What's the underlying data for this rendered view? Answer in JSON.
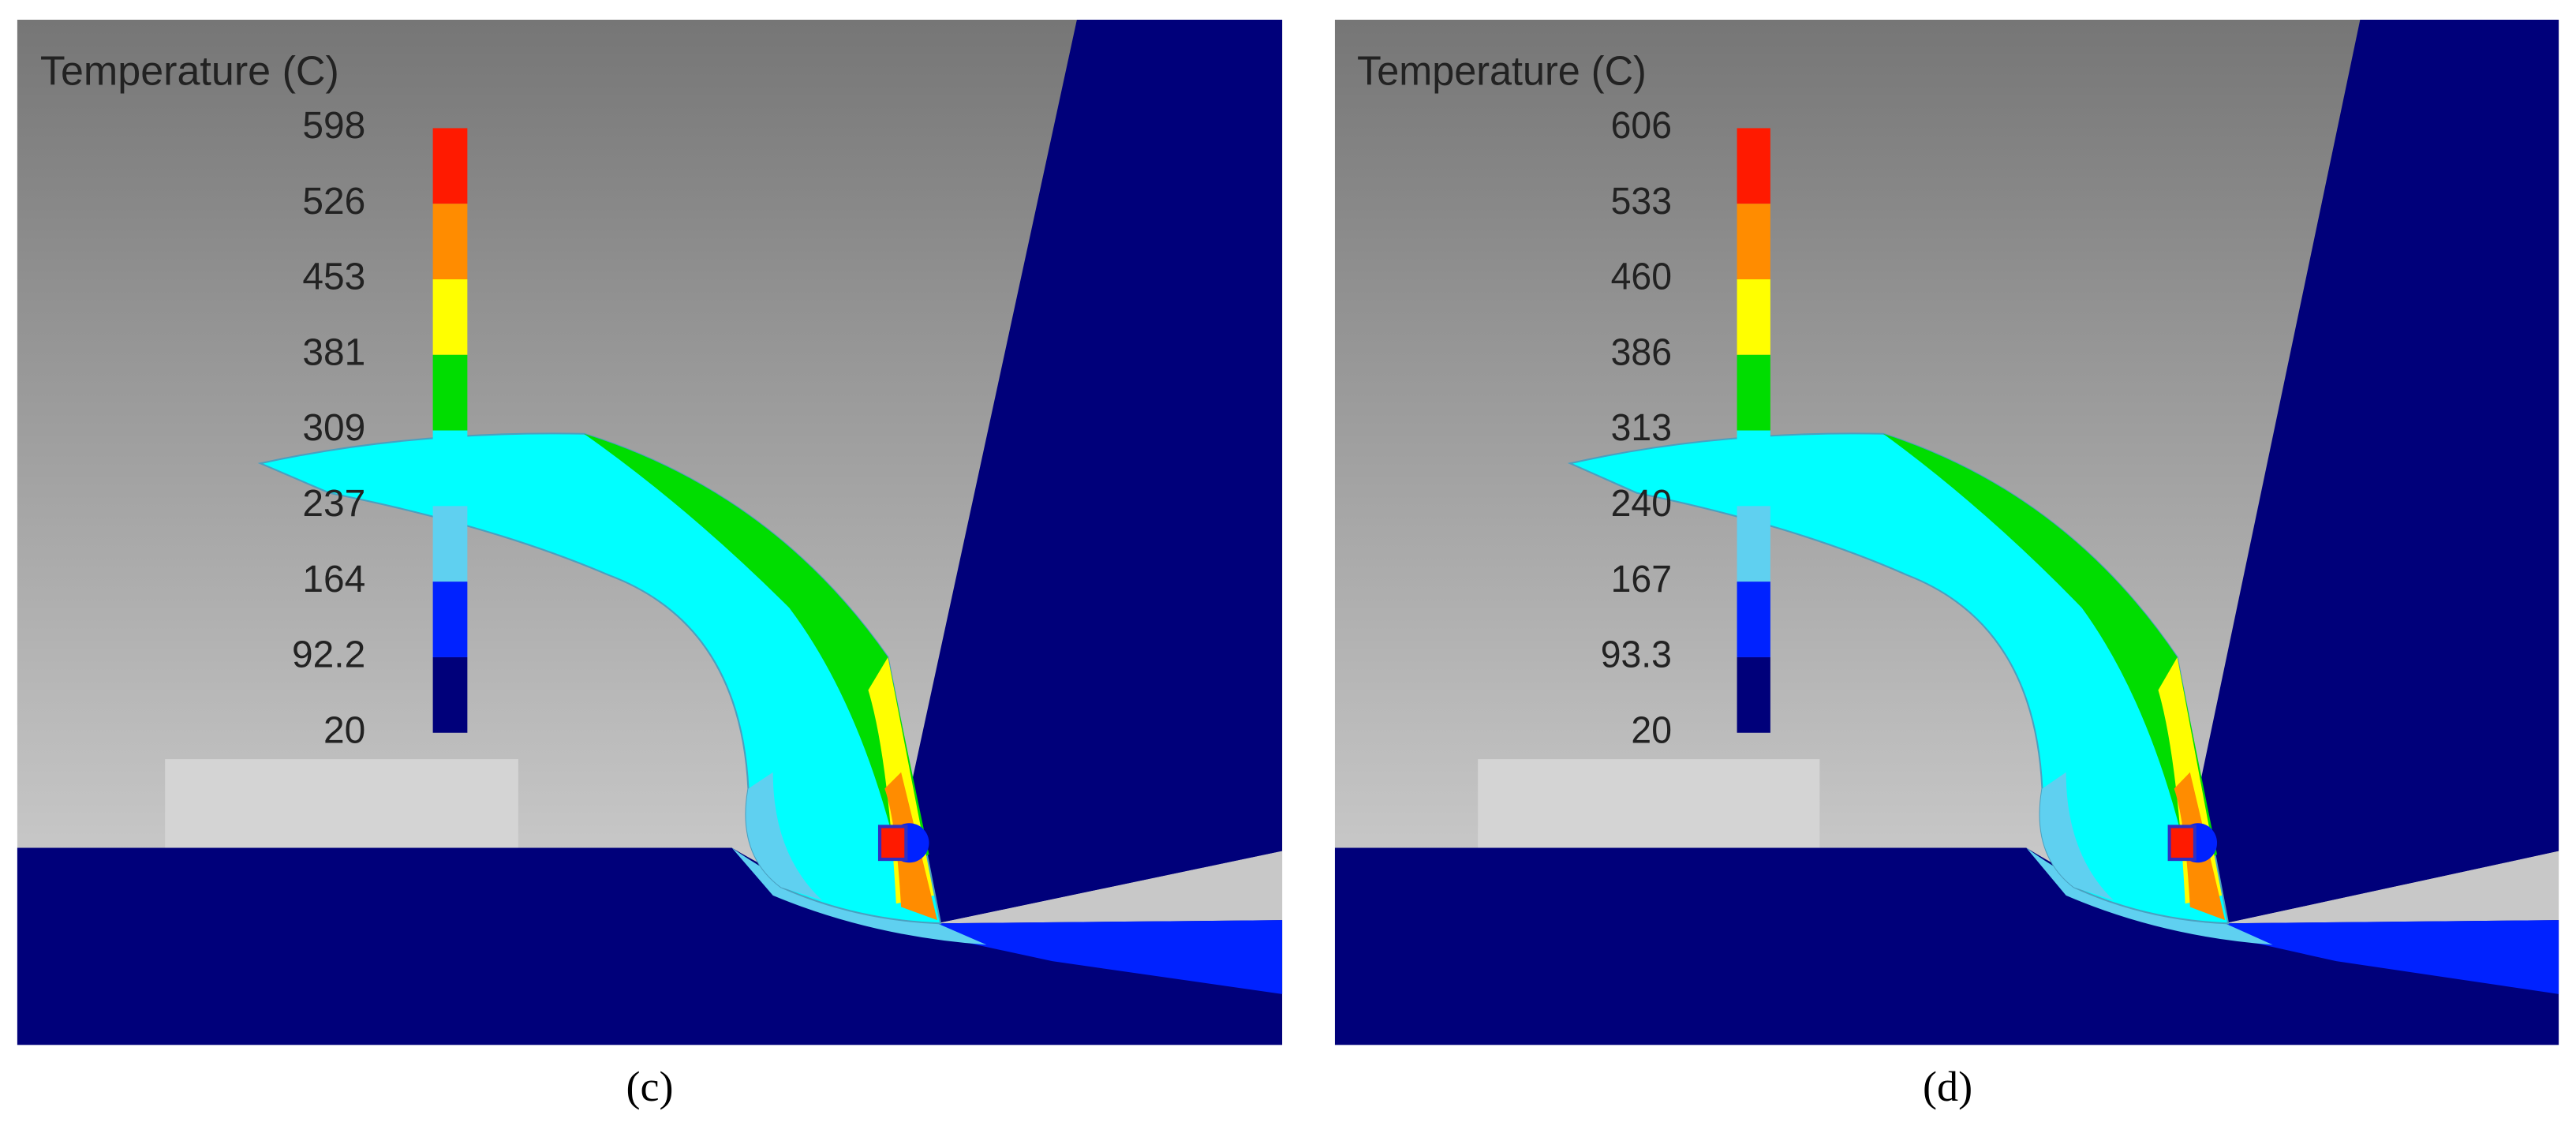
{
  "panels": [
    {
      "legend_title": "Temperature (C)",
      "legend_labels": [
        "598",
        "526",
        "453",
        "381",
        "309",
        "237",
        "164",
        "92.2",
        "20"
      ],
      "caption": "(c)"
    },
    {
      "legend_title": "Temperature (C)",
      "legend_labels": [
        "606",
        "533",
        "460",
        "386",
        "313",
        "240",
        "167",
        "93.3",
        "20"
      ],
      "caption": "(d)"
    }
  ]
}
